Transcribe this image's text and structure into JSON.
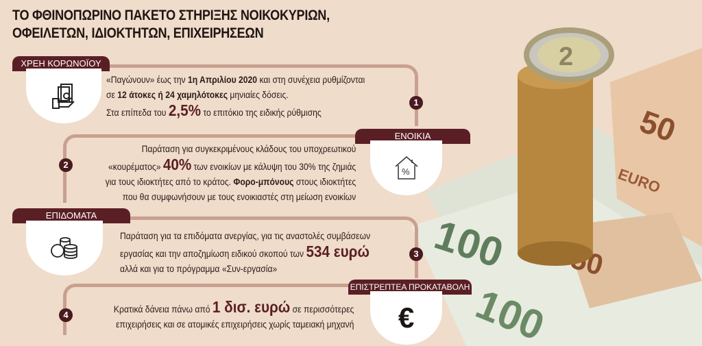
{
  "title": {
    "line1": "ΤΟ ΦΘΙΝΟΠΩΡΙΝΟ ΠΑΚΕΤΟ ΣΤΗΡΙΞΗΣ ΝΟΙΚΟΚΥΡΙΩΝ,",
    "line2": "ΟΦΕΙΛΕΤΩΝ, ΙΔΙΟΚΤΗΤΩΝ, ΕΠΙΧΕΙΡΗΣΕΩΝ"
  },
  "colors": {
    "background": "#efdccb",
    "accent": "#5a1f24",
    "line": "#c9a090"
  },
  "sections": [
    {
      "number": "1",
      "label": "ΧΡΕΗ ΚΟΡΩΝΟΪΟΥ",
      "icon": "hand-money-icon",
      "l1a": "«Παγώνουν» έως την ",
      "l1b": "1η Απριλίου 2020",
      "l1c": " και στη συνέχεια ρυθμίζονται",
      "l2a": "σε ",
      "l2b": "12 άτοκες ή 24 χαμηλότοκες",
      "l2c": " μηνιαίες δόσεις.",
      "l3a": "Στα επίπεδα του ",
      "l3b": "2,5%",
      "l3c": " το επιτόκιο της ειδικής ρύθμισης"
    },
    {
      "number": "2",
      "label": "ΕΝΟΙΚΙΑ",
      "icon": "house-percent-icon",
      "icon_text": "%",
      "l1": "Παράταση για συγκεκριμένους κλάδους του υποχρεωτικού",
      "l2a": "«κουρέματος» ",
      "l2b": "40%",
      "l2c": " των ενοικίων με κάλυψη του 30% της ζημιάς",
      "l3a": "για τους ιδιοκτήτες από το κράτος. ",
      "l3b": "Φορο-μπόνους",
      "l3c": " στους ιδιοκτήτες",
      "l4": "που θα συμφωνήσουν με τους ενοικιαστές στη μείωση ενοικίων"
    },
    {
      "number": "3",
      "label": "ΕΠΙΔΟΜΑΤΑ",
      "icon": "coins-icon",
      "l1": "Παράταση για τα επιδόματα ανεργίας, για τις αναστολές συμβάσεων",
      "l2a": "εργασίας και την αποζημίωση ειδικού σκοπού των ",
      "l2b": "534 ευρώ",
      "l3": "αλλά και για το πρόγραμμα «Συν-εργασία»"
    },
    {
      "number": "4",
      "label": "ΕΠΙΣΤΡΕΠΤΕΑ ΠΡΟΚΑΤΑΒΟΛΗ",
      "icon": "euro-icon",
      "icon_text": "€",
      "l1a": "Κρατικά δάνεια πάνω από ",
      "l1b": "1 δισ. ευρώ",
      "l1c": " σε περισσότερες",
      "l2": "επιχειρήσεις και σε ατομικές επιχειρήσεις χωρίς ταμειακή μηχανή"
    }
  ],
  "photo": {
    "description_text": [
      "100",
      "50",
      "EURO",
      "2"
    ]
  }
}
